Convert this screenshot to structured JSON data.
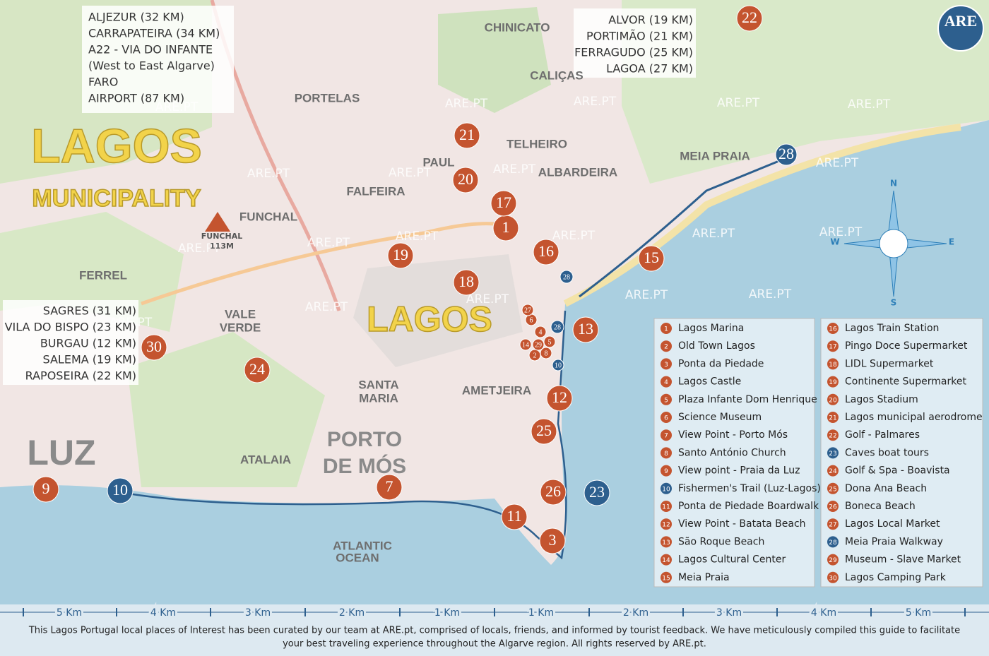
{
  "logo": "ARE",
  "watermark": "ARE.PT",
  "titles": {
    "municipality_1": "LAGOS",
    "municipality_2": "MUNICIPALITY",
    "city": "LAGOS",
    "luz": "LUZ",
    "porto_de_mos_1": "PORTO",
    "porto_de_mos_2": "DE MÓS"
  },
  "directions": {
    "northwest": [
      "ALJEZUR (32 KM)",
      "CARRAPATEIRA (34 KM)",
      "A22 - VIA DO INFANTE",
      "(West to East Algarve)",
      "FARO",
      "AIRPORT (87 KM)"
    ],
    "northeast": [
      "ALVOR (19 KM)",
      "PORTIMÃO (21 KM)",
      "FERRAGUDO (25 KM)",
      "LAGOA (27 KM)"
    ],
    "west": [
      "SAGRES (31 KM)",
      "VILA DO BISPO (23 KM)",
      "BURGAU (12 KM)",
      "SALEMA (19 KM)",
      "RAPOSEIRA (22 KM)"
    ]
  },
  "places": [
    "CHINICATO",
    "CALIÇAS",
    "PORTELAS",
    "TELHEIRO",
    "PAUL",
    "ALBARDEIRA",
    "FALFEIRA",
    "FUNCHAL",
    "MEIA PRAIA",
    "FERREL",
    "VALE",
    "VERDE",
    "SANTA",
    "MARIA",
    "AMETJEIRA",
    "ATALAIA",
    "ATLANTIC",
    "OCEAN"
  ],
  "peak": {
    "name": "FUNCHAL",
    "height": "113M"
  },
  "compass": {
    "north": "N",
    "south": "S",
    "east": "E",
    "west": "W"
  },
  "legend": {
    "items": [
      {
        "number": 1,
        "name": "Lagos Marina",
        "color": "#c4542f"
      },
      {
        "number": 2,
        "name": "Old Town Lagos",
        "color": "#c4542f"
      },
      {
        "number": 3,
        "name": "Ponta da Piedade",
        "color": "#c4542f"
      },
      {
        "number": 4,
        "name": "Lagos Castle",
        "color": "#c4542f"
      },
      {
        "number": 5,
        "name": "Plaza Infante Dom Henrique",
        "color": "#c4542f"
      },
      {
        "number": 6,
        "name": "Science Museum",
        "color": "#c4542f"
      },
      {
        "number": 7,
        "name": "View Point - Porto Mós",
        "color": "#c4542f"
      },
      {
        "number": 8,
        "name": "Santo António Church",
        "color": "#c4542f"
      },
      {
        "number": 9,
        "name": "View point - Praia da Luz",
        "color": "#c4542f"
      },
      {
        "number": 10,
        "name": "Fishermen's Trail (Luz-Lagos)",
        "color": "#2d5f8e"
      },
      {
        "number": 11,
        "name": "Ponta de Piedade Boardwalk",
        "color": "#c4542f"
      },
      {
        "number": 12,
        "name": "View Point - Batata Beach",
        "color": "#c4542f"
      },
      {
        "number": 13,
        "name": "São Roque Beach",
        "color": "#c4542f"
      },
      {
        "number": 14,
        "name": "Lagos Cultural Center",
        "color": "#c4542f"
      },
      {
        "number": 15,
        "name": "Meia Praia",
        "color": "#c4542f"
      },
      {
        "number": 16,
        "name": "Lagos Train Station",
        "color": "#c4542f"
      },
      {
        "number": 17,
        "name": "Pingo Doce Supermarket",
        "color": "#c4542f"
      },
      {
        "number": 18,
        "name": "LIDL Supermarket",
        "color": "#c4542f"
      },
      {
        "number": 19,
        "name": "Continente Supermarket",
        "color": "#c4542f"
      },
      {
        "number": 20,
        "name": "Lagos Stadium",
        "color": "#c4542f"
      },
      {
        "number": 21,
        "name": "Lagos municipal aerodrome",
        "color": "#c4542f"
      },
      {
        "number": 22,
        "name": "Golf - Palmares",
        "color": "#c4542f"
      },
      {
        "number": 23,
        "name": "Caves boat tours",
        "color": "#2d5f8e"
      },
      {
        "number": 24,
        "name": "Golf & Spa - Boavista",
        "color": "#c4542f"
      },
      {
        "number": 25,
        "name": "Dona Ana Beach",
        "color": "#c4542f"
      },
      {
        "number": 26,
        "name": "Boneca Beach",
        "color": "#c4542f"
      },
      {
        "number": 27,
        "name": "Lagos Local Market",
        "color": "#c4542f"
      },
      {
        "number": 28,
        "name": "Meia Praia Walkway",
        "color": "#2d5f8e"
      },
      {
        "number": 29,
        "name": "Museum - Slave Market",
        "color": "#c4542f"
      },
      {
        "number": 30,
        "name": "Lagos Camping Park",
        "color": "#c4542f"
      }
    ]
  },
  "scale": [
    "5 Km",
    "4 Km",
    "3 Km",
    "2 Km",
    "1 Km",
    "1 Km",
    "2 Km",
    "3 Km",
    "4 Km",
    "5 Km"
  ],
  "footer": [
    "This Lagos Portugal local places of Interest has been curated by our team at ARE.pt, comprised of locals, friends, and informed by tourist feedback. We have meticulously compiled this guide to facilitate",
    "your best traveling experience throughout the Algarve region. All rights reserved by ARE.pt."
  ]
}
